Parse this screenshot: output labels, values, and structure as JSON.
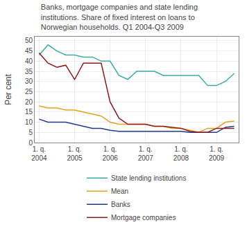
{
  "chart_data": {
    "type": "line",
    "title": "Banks, mortgage companies and state lending\ninstitutions. Share of fixed interest on loans to\nNorwegian households. Q1 2004-Q3 2009",
    "y_label": "Per cent",
    "categories": [
      "1. q.\n2004",
      null,
      null,
      null,
      "1. q.\n2005",
      null,
      null,
      null,
      "1. q.\n2006",
      null,
      null,
      null,
      "1. q.\n2007",
      null,
      null,
      null,
      "1. q.\n2008",
      null,
      null,
      null,
      "1. q.\n2009",
      null,
      null
    ],
    "series": [
      {
        "name": "State lending institutions",
        "color": "#3aada0",
        "values": [
          43,
          48,
          45,
          43,
          43,
          42,
          42,
          40,
          40,
          33,
          31,
          35,
          35,
          35,
          33,
          33,
          33,
          33,
          33,
          28,
          28,
          30,
          34
        ]
      },
      {
        "name": "Mean",
        "color": "#e8a020",
        "values": [
          18,
          17,
          17,
          16,
          16,
          15,
          14,
          13,
          10,
          9,
          9,
          9,
          9,
          8,
          8,
          7,
          7,
          6,
          5,
          7,
          7,
          10,
          10.5
        ]
      },
      {
        "name": "Banks",
        "color": "#1f3a8a",
        "values": [
          11.5,
          10,
          10,
          10,
          9,
          8,
          7,
          7,
          6,
          5.5,
          5.5,
          5.5,
          5.5,
          5.5,
          5.5,
          5.5,
          5.5,
          5,
          5,
          5,
          5,
          7.5,
          8
        ]
      },
      {
        "name": "Mortgage companies",
        "color": "#8b1a1a",
        "values": [
          44,
          39,
          37,
          38,
          31,
          39,
          39,
          39,
          20,
          12,
          9,
          9,
          9,
          8,
          8,
          7.5,
          7,
          5.5,
          5,
          5,
          7,
          7,
          7
        ]
      }
    ],
    "ylim": [
      0,
      52
    ],
    "yticks": [
      0,
      5,
      10,
      15,
      20,
      25,
      30,
      35,
      40,
      45,
      50
    ],
    "grid": true,
    "legend": "bottom"
  }
}
